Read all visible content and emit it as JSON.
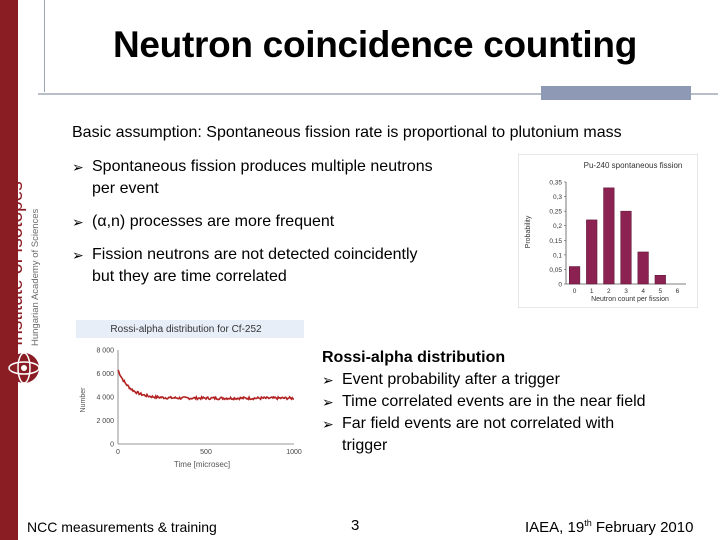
{
  "sidebar": {
    "institute": "Institute of Isotopes",
    "academy": "Hungarian Academy of Sciences",
    "brand_color": "#8a1c23"
  },
  "slide": {
    "title": "Neutron coincidence counting",
    "basic_assumption": "Basic assumption: Spontaneous fission rate is proportional to plutonium mass",
    "bullets": [
      {
        "line1": "Spontaneous fission produces multiple neutrons",
        "line2": "per event"
      },
      {
        "line1": "(α,n) processes are more frequent",
        "line2": ""
      },
      {
        "line1": "Fission neutrons are not detected coincidently",
        "line2": "but they are time correlated"
      }
    ],
    "rossi": {
      "heading": "Rossi-alpha distribution",
      "points": [
        "Event probability after a trigger",
        "Time correlated events are in the near field",
        "Far field events are not correlated with"
      ],
      "continuation": "trigger"
    }
  },
  "footer": {
    "left": "NCC measurements & training",
    "page": "3",
    "right_pre": "IAEA, 19",
    "right_sup": "th",
    "right_post": " February 2010"
  },
  "chart_data": [
    {
      "type": "bar",
      "title": "Pu-240 spontaneous fission",
      "xlabel": "Neutron count per fission",
      "ylabel": "Probability",
      "categories": [
        "0",
        "1",
        "2",
        "3",
        "4",
        "5",
        "6"
      ],
      "values": [
        0.06,
        0.22,
        0.33,
        0.25,
        0.11,
        0.03,
        0.0
      ],
      "yticks": [
        "0",
        "0,05",
        "0,1",
        "0,15",
        "0,2",
        "0,25",
        "0,3",
        "0,35"
      ],
      "ylim": [
        0,
        0.35
      ],
      "bar_color": "#8b2252",
      "grid": false
    },
    {
      "type": "line",
      "title": "Rossi-alpha distribution for Cf-252",
      "xlabel": "Time [microsec]",
      "ylabel": "Number",
      "xticks": [
        "0",
        "500",
        "1000"
      ],
      "yticks": [
        "0",
        "2 000",
        "4 000",
        "6 000",
        "8 000"
      ],
      "xlim": [
        0,
        1000
      ],
      "ylim": [
        0,
        8000
      ],
      "series": [
        {
          "decay_start": 6300,
          "baseline": 3900,
          "decay_end_x": 200,
          "color": "#b22222"
        }
      ],
      "grid": false
    }
  ]
}
